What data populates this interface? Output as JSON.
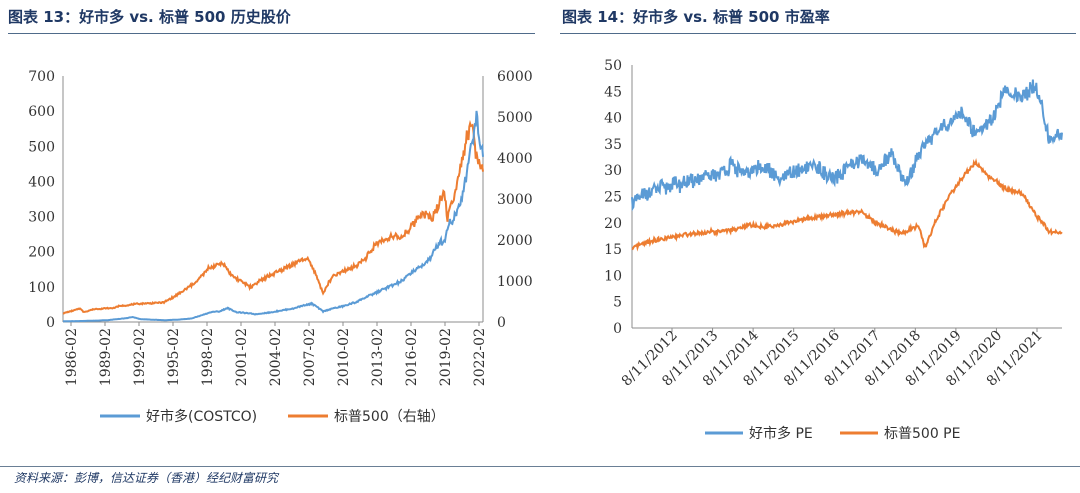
{
  "colors": {
    "blue": "#5b9bd5",
    "orange": "#ed7d31",
    "axis": "#8c8c8c",
    "title": "#1f3864"
  },
  "source_text": "资料来源：彭博，信达证券（香港）经纪财富研究",
  "chart_data": [
    {
      "type": "line",
      "title": "图表 13：好市多 vs. 标普 500 历史股价",
      "x_tick_labels": [
        "1986-02",
        "1989-02",
        "1992-02",
        "1995-02",
        "1998-02",
        "2001-02",
        "2004-02",
        "2007-02",
        "2010-02",
        "2013-02",
        "2016-02",
        "2019-02",
        "2022-02"
      ],
      "x_range": [
        1986.1,
        2023.4
      ],
      "left_axis": {
        "min": 0,
        "max": 700,
        "ticks": [
          0,
          100,
          200,
          300,
          400,
          500,
          600,
          700
        ]
      },
      "right_axis": {
        "min": 0,
        "max": 6000,
        "ticks": [
          0,
          1000,
          2000,
          3000,
          4000,
          5000,
          6000
        ]
      },
      "series": [
        {
          "name": "好市多(COSTCO)",
          "axis": "left",
          "color": "#5b9bd5",
          "x": [
            1986.1,
            1988,
            1990,
            1991.5,
            1992.3,
            1993,
            1994.5,
            1995.2,
            1996.5,
            1997.5,
            1998.5,
            1999.2,
            2000,
            2000.7,
            2001.5,
            2002.5,
            2003.2,
            2004.5,
            2005.5,
            2006.5,
            2007.3,
            2008.2,
            2008.8,
            2009.2,
            2010,
            2011,
            2012,
            2013,
            2014,
            2015,
            2016,
            2017,
            2018,
            2018.8,
            2019.5,
            2020,
            2020.3,
            2020.9,
            2021.5,
            2021.9,
            2022.2,
            2022.5,
            2022.8,
            2023.1,
            2023.4
          ],
          "y": [
            2,
            3,
            5,
            10,
            14,
            8,
            6,
            5,
            7,
            10,
            20,
            28,
            30,
            40,
            28,
            25,
            22,
            27,
            33,
            38,
            46,
            52,
            40,
            30,
            38,
            45,
            55,
            70,
            85,
            100,
            112,
            140,
            160,
            185,
            225,
            230,
            275,
            300,
            350,
            420,
            480,
            520,
            600,
            500,
            480
          ]
        },
        {
          "name": "标普500（右轴）",
          "axis": "right",
          "color": "#ed7d31",
          "x": [
            1986.1,
            1987.7,
            1987.9,
            1989,
            1990.5,
            1991,
            1993,
            1995,
            1996.5,
            1998,
            1999,
            2000.3,
            2001,
            2002.8,
            2003.5,
            2005,
            2007,
            2007.8,
            2008.5,
            2009.2,
            2010,
            2011.5,
            2012,
            2013,
            2014,
            2015.5,
            2016,
            2017,
            2018,
            2018.9,
            2019.5,
            2020,
            2020.2,
            2021,
            2022,
            2022.5,
            2022.8,
            2023.1,
            2023.4
          ],
          "y": [
            210,
            330,
            240,
            320,
            340,
            380,
            450,
            470,
            700,
            1000,
            1300,
            1450,
            1150,
            850,
            1000,
            1200,
            1480,
            1550,
            1200,
            700,
            1100,
            1300,
            1350,
            1550,
            1950,
            2100,
            2050,
            2300,
            2700,
            2500,
            2900,
            3200,
            2500,
            3300,
            4550,
            4800,
            4000,
            3900,
            3700
          ]
        }
      ],
      "legend": [
        "好市多(COSTCO)",
        "标普500（右轴）"
      ]
    },
    {
      "type": "line",
      "title": "图表 14：好市多 vs. 标普 500 市盈率",
      "x_tick_labels": [
        "8/11/2012",
        "8/11/2013",
        "8/11/2014",
        "8/11/2015",
        "8/11/2016",
        "8/11/2017",
        "8/11/2018",
        "8/11/2019",
        "8/11/2020",
        "8/11/2021"
      ],
      "x_range": [
        2012.6,
        2022.5
      ],
      "y_axis": {
        "min": 0,
        "max": 50,
        "ticks": [
          0,
          5,
          10,
          15,
          20,
          25,
          30,
          35,
          40,
          45,
          50
        ]
      },
      "series": [
        {
          "name": "好市多 PE",
          "color": "#5b9bd5",
          "x": [
            2012.6,
            2013,
            2013.5,
            2014,
            2014.5,
            2014.9,
            2015.2,
            2015.6,
            2016,
            2016.4,
            2016.8,
            2017.2,
            2017.5,
            2017.9,
            2018.2,
            2018.6,
            2018.9,
            2019.3,
            2019.6,
            2019.9,
            2020.2,
            2020.5,
            2020.9,
            2021.2,
            2021.5,
            2021.9,
            2022.2,
            2022.5
          ],
          "y": [
            24,
            26,
            27,
            28,
            29,
            31,
            29,
            31,
            28,
            30,
            31,
            28,
            30,
            32,
            30,
            33,
            27,
            35,
            37,
            39,
            41,
            37,
            40,
            45,
            44,
            46,
            36,
            37
          ]
        },
        {
          "name": "标普500 PE",
          "color": "#ed7d31",
          "x": [
            2012.6,
            2013,
            2013.5,
            2014,
            2014.5,
            2014.9,
            2015.3,
            2015.8,
            2016.3,
            2016.8,
            2017.2,
            2017.6,
            2017.9,
            2018.2,
            2018.5,
            2018.8,
            2019.2,
            2019.35,
            2019.6,
            2019.9,
            2020.2,
            2020.5,
            2020.8,
            2021.2,
            2021.6,
            2021.9,
            2022.2,
            2022.5
          ],
          "y": [
            15,
            16.5,
            17.2,
            18,
            18.3,
            18.6,
            19.5,
            19.2,
            20.2,
            21,
            21.5,
            22,
            22.2,
            20,
            19,
            18,
            19.5,
            15.2,
            20.5,
            25,
            28.5,
            31.5,
            29,
            26.5,
            25.5,
            21.5,
            18.5,
            18
          ]
        }
      ],
      "legend": [
        "好市多 PE",
        "标普500 PE"
      ]
    }
  ]
}
